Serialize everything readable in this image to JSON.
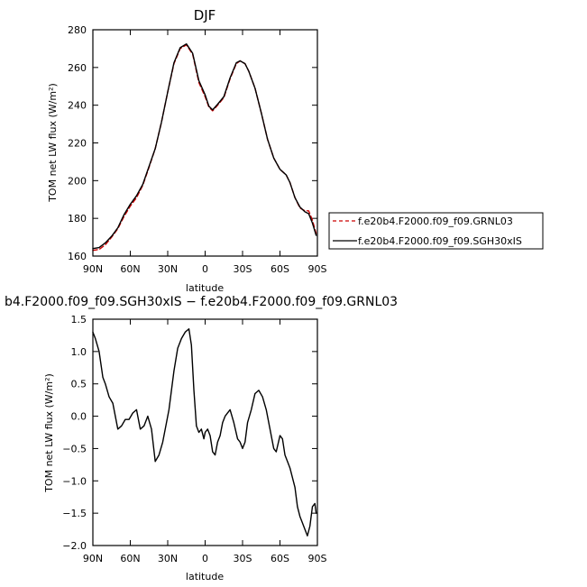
{
  "chart_data": [
    {
      "type": "line",
      "title": "DJF",
      "xlabel": "latitude",
      "ylabel": "TOM net LW flux (W/m²)",
      "xlim": [
        90,
        -90
      ],
      "ylim": [
        160,
        280
      ],
      "xticks": [
        90,
        60,
        30,
        0,
        -30,
        -60,
        -90
      ],
      "xtick_labels": [
        "90N",
        "60N",
        "30N",
        "0",
        "30S",
        "60S",
        "90S"
      ],
      "yticks": [
        160,
        180,
        200,
        220,
        240,
        260,
        280
      ],
      "ytick_labels": [
        "160",
        "180",
        "200",
        "220",
        "240",
        "260",
        "280"
      ],
      "legend_position": "right",
      "grid": false,
      "x": [
        90,
        85,
        80,
        75,
        70,
        65,
        60,
        55,
        50,
        45,
        40,
        35,
        30,
        25,
        20,
        15,
        10,
        5,
        2,
        0,
        -3,
        -6,
        -10,
        -15,
        -20,
        -25,
        -28,
        -32,
        -35,
        -40,
        -45,
        -50,
        -55,
        -60,
        -65,
        -68,
        -72,
        -76,
        -80,
        -83,
        -86,
        -89
      ],
      "series": [
        {
          "name": "f.e20b4.F2000.f09_f09.GRNL03",
          "color": "#cc0000",
          "dash": "dashed",
          "values": [
            163,
            163.5,
            166,
            170,
            174.5,
            181,
            186.5,
            191,
            197.5,
            207,
            217,
            231,
            247,
            262,
            270,
            272,
            267,
            252,
            247.5,
            244.5,
            239,
            237,
            240,
            244,
            254,
            262,
            263.5,
            262,
            258,
            249,
            236,
            222,
            212,
            206,
            203,
            199,
            191,
            185.5,
            184,
            184,
            179,
            172
          ]
        },
        {
          "name": "f.e20b4.F2000.f09_f09.SGH30xIS",
          "color": "#000000",
          "dash": "solid",
          "values": [
            164,
            164.5,
            167,
            170.5,
            175,
            182,
            187.5,
            192,
            198,
            207.5,
            217,
            231,
            247,
            262.5,
            270.5,
            272.5,
            267.5,
            253,
            248.5,
            245.5,
            239.5,
            237.5,
            240.5,
            244.5,
            254.5,
            262.5,
            263.5,
            262,
            258,
            249,
            236,
            222,
            212,
            206,
            203,
            199,
            191,
            186,
            183.5,
            182.5,
            177.5,
            171
          ]
        }
      ]
    },
    {
      "type": "line",
      "title": "b4.F2000.f09_f09.SGH30xIS − f.e20b4.F2000.f09_f09.GRNL03",
      "xlabel": "latitude",
      "ylabel": "TOM net LW flux (W/m²)",
      "xlim": [
        90,
        -90
      ],
      "ylim": [
        -2.0,
        1.5
      ],
      "xticks": [
        90,
        60,
        30,
        0,
        -30,
        -60,
        -90
      ],
      "xtick_labels": [
        "90N",
        "60N",
        "30N",
        "0",
        "30S",
        "60S",
        "90S"
      ],
      "yticks": [
        -2.0,
        -1.5,
        -1.0,
        -0.5,
        0.0,
        0.5,
        1.0,
        1.5
      ],
      "ytick_labels": [
        "−2.0",
        "−1.5",
        "−1.0",
        "−0.5",
        "0.0",
        "0.5",
        "1.0",
        "1.5"
      ],
      "grid": false,
      "series": [
        {
          "color": "#000000",
          "dash": "solid",
          "x": [
            90,
            88,
            85,
            82,
            80,
            77,
            74,
            72,
            70,
            67,
            64,
            61,
            58,
            55,
            52,
            49,
            46,
            43,
            40,
            37,
            34,
            31,
            29,
            27,
            25,
            22,
            19,
            16,
            13,
            11,
            9,
            7,
            6,
            5,
            3,
            1,
            0,
            -2,
            -4,
            -6,
            -8,
            -10,
            -12,
            -14,
            -16,
            -18,
            -20,
            -23,
            -26,
            -28,
            -30,
            -32,
            -34,
            -37,
            -40,
            -43,
            -46,
            -49,
            -52,
            -55,
            -57,
            -60,
            -62,
            -64,
            -66,
            -68,
            -70,
            -72,
            -74,
            -76,
            -78,
            -80,
            -82,
            -84,
            -86,
            -88,
            -89
          ],
          "values": [
            1.3,
            1.2,
            1.0,
            0.6,
            0.5,
            0.3,
            0.2,
            0.0,
            -0.2,
            -0.15,
            -0.05,
            -0.05,
            0.05,
            0.1,
            -0.2,
            -0.15,
            0.0,
            -0.2,
            -0.7,
            -0.6,
            -0.4,
            -0.1,
            0.1,
            0.4,
            0.7,
            1.05,
            1.2,
            1.3,
            1.35,
            1.1,
            0.4,
            -0.15,
            -0.2,
            -0.25,
            -0.2,
            -0.35,
            -0.25,
            -0.2,
            -0.3,
            -0.55,
            -0.6,
            -0.4,
            -0.3,
            -0.1,
            0.0,
            0.05,
            0.1,
            -0.1,
            -0.35,
            -0.4,
            -0.5,
            -0.4,
            -0.1,
            0.1,
            0.35,
            0.4,
            0.3,
            0.1,
            -0.2,
            -0.5,
            -0.55,
            -0.3,
            -0.35,
            -0.6,
            -0.7,
            -0.8,
            -0.95,
            -1.1,
            -1.4,
            -1.55,
            -1.65,
            -1.75,
            -1.85,
            -1.7,
            -1.4,
            -1.35,
            -1.5
          ]
        }
      ]
    }
  ]
}
